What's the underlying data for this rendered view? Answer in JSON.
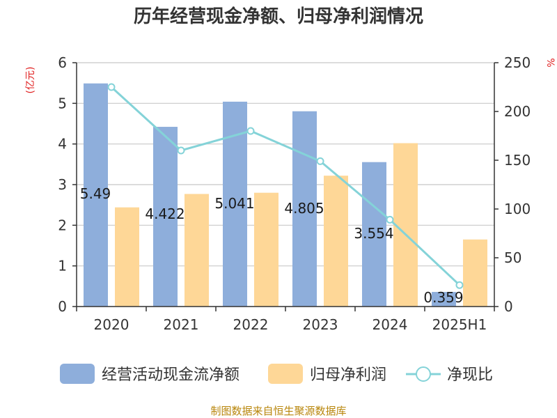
{
  "chart_data": {
    "type": "bar",
    "title": "历年经营现金净额、归母净利润情况",
    "categories": [
      "2020",
      "2021",
      "2022",
      "2023",
      "2024",
      "2025H1"
    ],
    "series": [
      {
        "name": "经营活动现金流净额",
        "kind": "bar",
        "axis": "left",
        "color": "#8eaedb",
        "values": [
          5.49,
          4.422,
          5.041,
          4.805,
          3.554,
          0.359
        ],
        "labels": [
          "5.49",
          "4.422",
          "5.041",
          "4.805",
          "3.554",
          "0.359"
        ]
      },
      {
        "name": "归母净利润",
        "kind": "bar",
        "axis": "left",
        "color": "#fed797",
        "values": [
          2.44,
          2.77,
          2.8,
          3.22,
          4.02,
          1.65
        ]
      },
      {
        "name": "净现比",
        "kind": "line",
        "axis": "right",
        "color": "#84d3d8",
        "values": [
          225,
          160,
          180,
          149,
          89,
          22
        ]
      }
    ],
    "y_left": {
      "label": "(亿元)",
      "min": 0,
      "max": 6,
      "ticks": [
        "0",
        "1",
        "2",
        "3",
        "4",
        "5",
        "6"
      ]
    },
    "y_right": {
      "label": "%",
      "min": 0,
      "max": 250,
      "ticks": [
        "0",
        "50",
        "100",
        "150",
        "200",
        "250"
      ]
    },
    "grid": true,
    "legend": "bottom",
    "source": "制图数据来自恒生聚源数据库"
  }
}
